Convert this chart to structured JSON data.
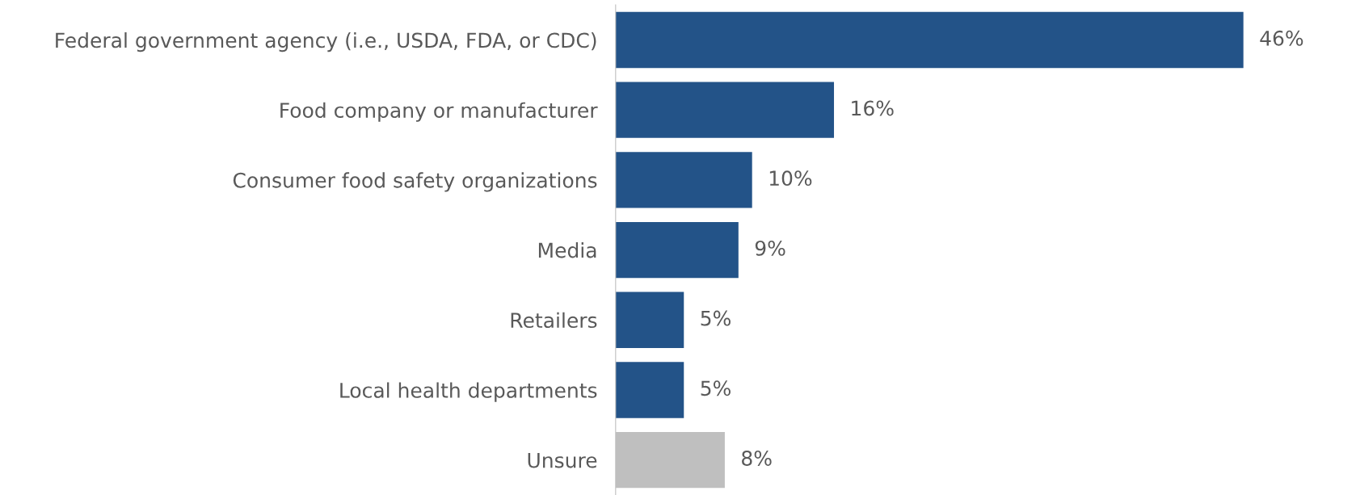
{
  "chart_data": {
    "type": "bar",
    "orientation": "horizontal",
    "categories": [
      "Federal government agency (i.e., USDA, FDA, or CDC)",
      "Food company or manufacturer",
      "Consumer food safety organizations",
      "Media",
      "Retailers",
      "Local health departments",
      "Unsure"
    ],
    "values": [
      46,
      16,
      10,
      9,
      5,
      5,
      8
    ],
    "colors": [
      "#235388",
      "#235388",
      "#235388",
      "#235388",
      "#235388",
      "#235388",
      "#bfbfbf"
    ],
    "value_labels": [
      "46%",
      "16%",
      "10%",
      "9%",
      "5%",
      "5%",
      "8%"
    ],
    "grid": false,
    "legend": false
  }
}
